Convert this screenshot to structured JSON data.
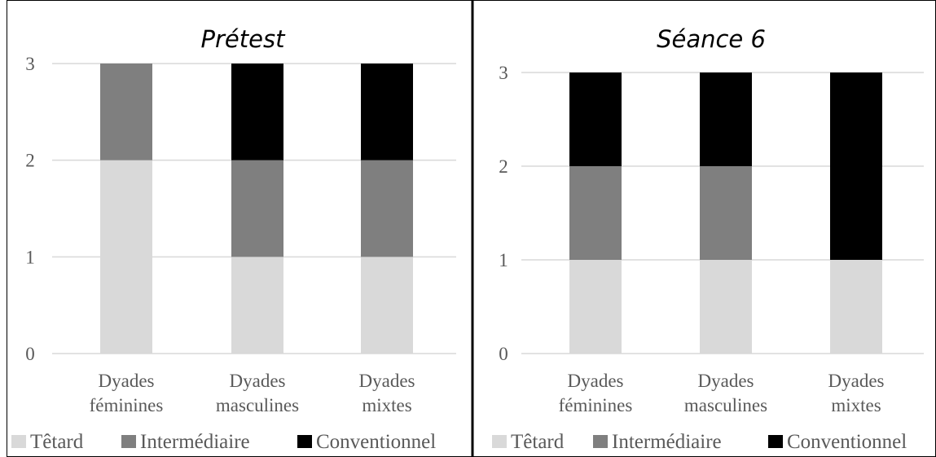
{
  "colors": {
    "tetard": "#d9d9d9",
    "intermediaire": "#7f7f7f",
    "conventionnel": "#000000",
    "gridline": "#d9d9d9",
    "panel_border": "#000000"
  },
  "legend": [
    "Têtard",
    "Intermédiaire",
    "Conventionnel"
  ],
  "chart_data": [
    {
      "type": "bar",
      "stacked": true,
      "title": "Prétest",
      "categories": [
        [
          "Dyades",
          "féminines"
        ],
        [
          "Dyades",
          "masculines"
        ],
        [
          "Dyades",
          "mixtes"
        ]
      ],
      "series": [
        {
          "name": "Têtard",
          "values": [
            2,
            1,
            1
          ]
        },
        {
          "name": "Intermédiaire",
          "values": [
            1,
            1,
            1
          ]
        },
        {
          "name": "Conventionnel",
          "values": [
            0,
            1,
            1
          ]
        }
      ],
      "yticks": [
        0,
        1,
        2,
        3
      ],
      "ylim": [
        0,
        3
      ],
      "grid": true,
      "legend_position": "bottom"
    },
    {
      "type": "bar",
      "stacked": true,
      "title": "Séance 6",
      "categories": [
        [
          "Dyades",
          "féminines"
        ],
        [
          "Dyades",
          "masculines"
        ],
        [
          "Dyades",
          "mixtes"
        ]
      ],
      "series": [
        {
          "name": "Têtard",
          "values": [
            1,
            1,
            1
          ]
        },
        {
          "name": "Intermédiaire",
          "values": [
            1,
            1,
            0
          ]
        },
        {
          "name": "Conventionnel",
          "values": [
            1,
            1,
            2
          ]
        }
      ],
      "yticks": [
        0,
        1,
        2,
        3
      ],
      "ylim": [
        0,
        3
      ],
      "grid": true,
      "legend_position": "bottom"
    }
  ]
}
